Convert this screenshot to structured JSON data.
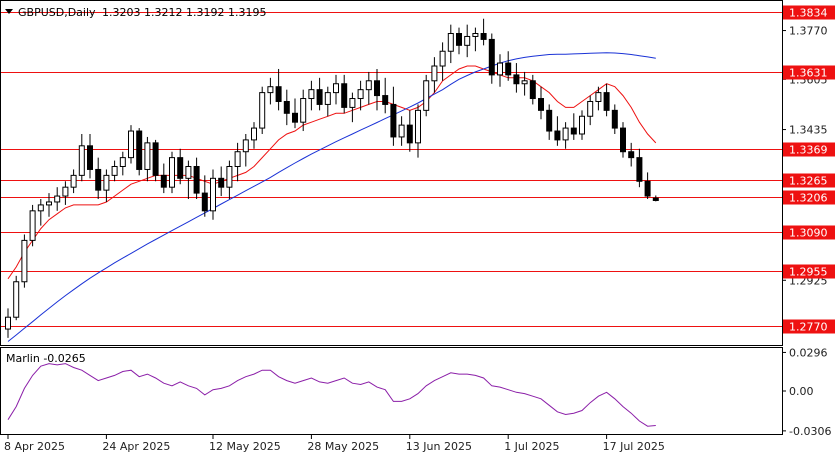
{
  "header": {
    "symbol": "GBPUSD,Daily",
    "ohlc": "1.3203 1.3212 1.3192 1.3195"
  },
  "indicator": {
    "label": "Marlin -0.0265",
    "ticks": [
      "0.0296",
      "0.00",
      "-0.0306"
    ]
  },
  "colors": {
    "level": "#ee1111",
    "ma_fast": "#ee1111",
    "ma_slow": "#1a32d6",
    "oscillator": "#8b1fa8",
    "candle_up": "#ffffff",
    "candle_down": "#000000"
  },
  "chart_data": {
    "type": "candlestick",
    "title": "GBPUSD,Daily",
    "ylim": [
      1.2706,
      1.387
    ],
    "y_ticks": [
      "1.3770",
      "1.3605",
      "1.3435",
      "1.2925"
    ],
    "levels": [
      "1.3834",
      "1.3631",
      "1.3369",
      "1.3265",
      "1.3206",
      "1.3090",
      "1.2955",
      "1.2770"
    ],
    "x_labels": [
      "8 Apr 2025",
      "24 Apr 2025",
      "12 May 2025",
      "28 May 2025",
      "13 Jun 2025",
      "1 Jul 2025",
      "17 Jul 2025"
    ],
    "ohlc": [
      [
        1.276,
        1.283,
        1.273,
        1.28
      ],
      [
        1.28,
        1.294,
        1.279,
        1.292
      ],
      [
        1.292,
        1.308,
        1.29,
        1.306
      ],
      [
        1.306,
        1.318,
        1.304,
        1.316
      ],
      [
        1.316,
        1.32,
        1.311,
        1.318
      ],
      [
        1.318,
        1.322,
        1.314,
        1.319
      ],
      [
        1.319,
        1.324,
        1.316,
        1.321
      ],
      [
        1.321,
        1.326,
        1.318,
        1.324
      ],
      [
        1.324,
        1.33,
        1.322,
        1.328
      ],
      [
        1.328,
        1.342,
        1.326,
        1.338
      ],
      [
        1.338,
        1.342,
        1.327,
        1.33
      ],
      [
        1.33,
        1.334,
        1.32,
        1.323
      ],
      [
        1.323,
        1.33,
        1.319,
        1.328
      ],
      [
        1.328,
        1.333,
        1.326,
        1.331
      ],
      [
        1.331,
        1.336,
        1.328,
        1.334
      ],
      [
        1.334,
        1.345,
        1.332,
        1.343
      ],
      [
        1.343,
        1.344,
        1.328,
        1.33
      ],
      [
        1.33,
        1.341,
        1.326,
        1.339
      ],
      [
        1.339,
        1.34,
        1.326,
        1.328
      ],
      [
        1.328,
        1.332,
        1.322,
        1.324
      ],
      [
        1.324,
        1.336,
        1.322,
        1.334
      ],
      [
        1.334,
        1.337,
        1.325,
        1.327
      ],
      [
        1.327,
        1.333,
        1.32,
        1.331
      ],
      [
        1.331,
        1.334,
        1.32,
        1.322
      ],
      [
        1.322,
        1.328,
        1.314,
        1.316
      ],
      [
        1.316,
        1.33,
        1.313,
        1.327
      ],
      [
        1.327,
        1.331,
        1.321,
        1.324
      ],
      [
        1.324,
        1.333,
        1.32,
        1.331
      ],
      [
        1.331,
        1.339,
        1.326,
        1.336
      ],
      [
        1.336,
        1.342,
        1.331,
        1.34
      ],
      [
        1.34,
        1.346,
        1.337,
        1.344
      ],
      [
        1.344,
        1.358,
        1.342,
        1.356
      ],
      [
        1.356,
        1.361,
        1.352,
        1.358
      ],
      [
        1.358,
        1.364,
        1.35,
        1.353
      ],
      [
        1.353,
        1.357,
        1.345,
        1.349
      ],
      [
        1.349,
        1.354,
        1.344,
        1.346
      ],
      [
        1.346,
        1.357,
        1.343,
        1.354
      ],
      [
        1.354,
        1.36,
        1.35,
        1.357
      ],
      [
        1.357,
        1.361,
        1.35,
        1.352
      ],
      [
        1.352,
        1.358,
        1.348,
        1.356
      ],
      [
        1.356,
        1.362,
        1.352,
        1.359
      ],
      [
        1.359,
        1.362,
        1.349,
        1.351
      ],
      [
        1.351,
        1.356,
        1.346,
        1.354
      ],
      [
        1.354,
        1.36,
        1.35,
        1.357
      ],
      [
        1.357,
        1.363,
        1.352,
        1.36
      ],
      [
        1.36,
        1.364,
        1.35,
        1.355
      ],
      [
        1.355,
        1.361,
        1.349,
        1.352
      ],
      [
        1.352,
        1.358,
        1.338,
        1.341
      ],
      [
        1.341,
        1.348,
        1.338,
        1.345
      ],
      [
        1.345,
        1.35,
        1.336,
        1.339
      ],
      [
        1.339,
        1.352,
        1.334,
        1.35
      ],
      [
        1.35,
        1.362,
        1.348,
        1.36
      ],
      [
        1.36,
        1.368,
        1.356,
        1.365
      ],
      [
        1.365,
        1.373,
        1.36,
        1.37
      ],
      [
        1.37,
        1.379,
        1.366,
        1.376
      ],
      [
        1.376,
        1.378,
        1.369,
        1.372
      ],
      [
        1.372,
        1.379,
        1.368,
        1.375
      ],
      [
        1.375,
        1.378,
        1.37,
        1.376
      ],
      [
        1.376,
        1.381,
        1.372,
        1.374
      ],
      [
        1.374,
        1.376,
        1.359,
        1.362
      ],
      [
        1.362,
        1.369,
        1.358,
        1.366
      ],
      [
        1.366,
        1.37,
        1.36,
        1.362
      ],
      [
        1.362,
        1.366,
        1.356,
        1.359
      ],
      [
        1.359,
        1.363,
        1.355,
        1.36
      ],
      [
        1.36,
        1.362,
        1.352,
        1.354
      ],
      [
        1.354,
        1.358,
        1.347,
        1.35
      ],
      [
        1.35,
        1.352,
        1.34,
        1.343
      ],
      [
        1.343,
        1.348,
        1.338,
        1.34
      ],
      [
        1.34,
        1.346,
        1.337,
        1.344
      ],
      [
        1.344,
        1.349,
        1.34,
        1.342
      ],
      [
        1.342,
        1.35,
        1.34,
        1.348
      ],
      [
        1.348,
        1.355,
        1.345,
        1.353
      ],
      [
        1.353,
        1.358,
        1.35,
        1.356
      ],
      [
        1.356,
        1.359,
        1.348,
        1.35
      ],
      [
        1.35,
        1.352,
        1.342,
        1.344
      ],
      [
        1.344,
        1.346,
        1.334,
        1.336
      ],
      [
        1.336,
        1.339,
        1.331,
        1.334
      ],
      [
        1.334,
        1.337,
        1.324,
        1.326
      ],
      [
        1.326,
        1.329,
        1.32,
        1.321
      ],
      [
        1.3203,
        1.3212,
        1.3192,
        1.3195
      ]
    ],
    "series": [
      {
        "values": [
          1.293,
          1.297,
          1.302,
          1.306,
          1.31,
          1.313,
          1.315,
          1.317,
          1.318,
          1.318,
          1.318,
          1.318,
          1.319,
          1.321,
          1.323,
          1.325,
          1.326,
          1.327,
          1.328,
          1.328,
          1.328,
          1.328,
          1.328,
          1.327,
          1.326,
          1.325,
          1.326,
          1.327,
          1.328,
          1.329,
          1.331,
          1.334,
          1.337,
          1.34,
          1.342,
          1.343,
          1.345,
          1.346,
          1.347,
          1.348,
          1.349,
          1.349,
          1.35,
          1.351,
          1.352,
          1.353,
          1.353,
          1.352,
          1.351,
          1.35,
          1.351,
          1.353,
          1.356,
          1.36,
          1.362,
          1.364,
          1.365,
          1.365,
          1.364,
          1.363,
          1.362,
          1.361,
          1.361,
          1.361,
          1.36,
          1.358,
          1.356,
          1.353,
          1.351,
          1.351,
          1.353,
          1.355,
          1.357,
          1.359,
          1.358,
          1.355,
          1.351,
          1.346,
          1.342,
          1.339
        ]
      },
      {
        "values": [
          1.2718,
          1.274,
          1.2763,
          1.2785,
          1.2808,
          1.283,
          1.2852,
          1.2873,
          1.2893,
          1.2913,
          1.2932,
          1.295,
          1.2967,
          1.2984,
          1.3,
          1.3016,
          1.3032,
          1.3048,
          1.3063,
          1.3078,
          1.3093,
          1.3108,
          1.3123,
          1.3138,
          1.3153,
          1.3168,
          1.3183,
          1.3198,
          1.3213,
          1.3228,
          1.3243,
          1.3258,
          1.3273,
          1.329,
          1.3306,
          1.3322,
          1.3337,
          1.3352,
          1.3366,
          1.338,
          1.3394,
          1.3407,
          1.342,
          1.3433,
          1.3446,
          1.3459,
          1.3472,
          1.3485,
          1.3498,
          1.3511,
          1.3525,
          1.354,
          1.3555,
          1.357,
          1.3588,
          1.3605,
          1.3618,
          1.363,
          1.364,
          1.365,
          1.366,
          1.3668,
          1.3674,
          1.3679,
          1.3683,
          1.3686,
          1.3689,
          1.369,
          1.369,
          1.3691,
          1.3692,
          1.3693,
          1.3694,
          1.3695,
          1.3694,
          1.3692,
          1.3689,
          1.3685,
          1.3681,
          1.3676
        ]
      }
    ],
    "oscillator": {
      "name": "Marlin",
      "ylim": [
        -0.033,
        0.033
      ],
      "values": [
        -0.022,
        -0.012,
        0.002,
        0.012,
        0.019,
        0.021,
        0.02,
        0.021,
        0.018,
        0.016,
        0.012,
        0.008,
        0.01,
        0.012,
        0.015,
        0.016,
        0.011,
        0.013,
        0.01,
        0.006,
        0.004,
        0.007,
        0.004,
        0.002,
        -0.003,
        0.001,
        0.002,
        0.004,
        0.008,
        0.011,
        0.013,
        0.016,
        0.016,
        0.011,
        0.008,
        0.006,
        0.008,
        0.01,
        0.007,
        0.006,
        0.008,
        0.01,
        0.006,
        0.005,
        0.007,
        0.003,
        0.001,
        -0.008,
        -0.008,
        -0.006,
        -0.002,
        0.004,
        0.008,
        0.011,
        0.014,
        0.013,
        0.013,
        0.012,
        0.01,
        0.004,
        0.003,
        0.001,
        -0.001,
        -0.002,
        -0.004,
        -0.006,
        -0.011,
        -0.016,
        -0.018,
        -0.017,
        -0.015,
        -0.009,
        -0.004,
        -0.001,
        -0.006,
        -0.012,
        -0.017,
        -0.023,
        -0.027,
        -0.0265
      ]
    }
  }
}
